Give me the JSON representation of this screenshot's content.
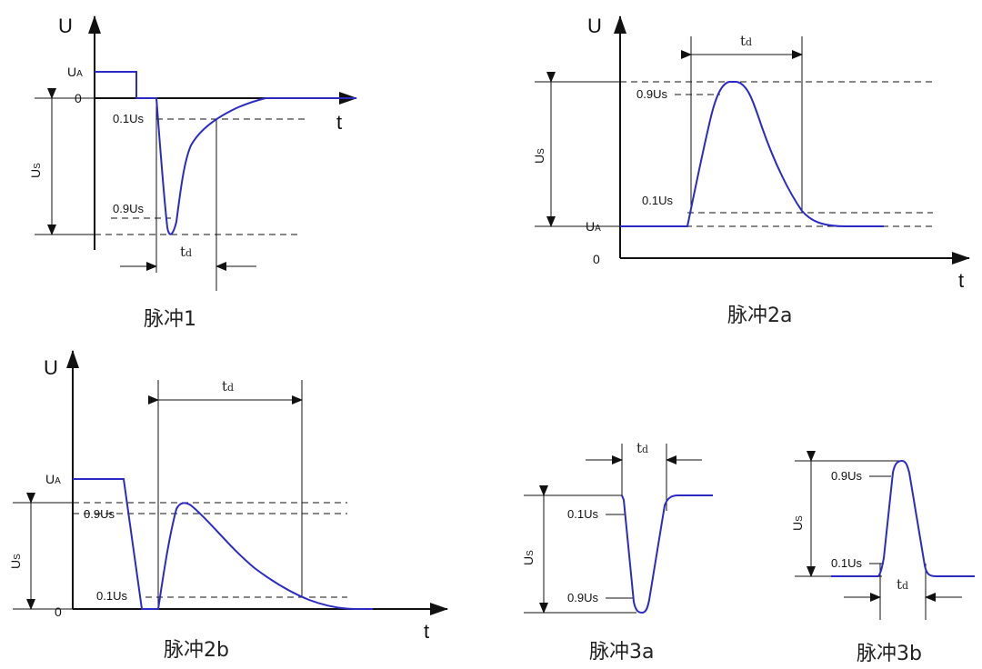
{
  "colors": {
    "waveform": "#2b2bc4",
    "axis": "#111111",
    "background": "#ffffff"
  },
  "labels": {
    "U": "U",
    "t": "t",
    "UA_main": "U",
    "UA_sub": "A",
    "US_main": "U",
    "US_sub": "S",
    "zero": "0",
    "p01": "0.1Us",
    "p09": "0.9Us",
    "td_main": "t",
    "td_sub": "d"
  },
  "captions": {
    "pulse1": "脉冲1",
    "pulse2a": "脉冲2a",
    "pulse2b": "脉冲2b",
    "pulse3a": "脉冲3a",
    "pulse3b": "脉冲3b"
  }
}
